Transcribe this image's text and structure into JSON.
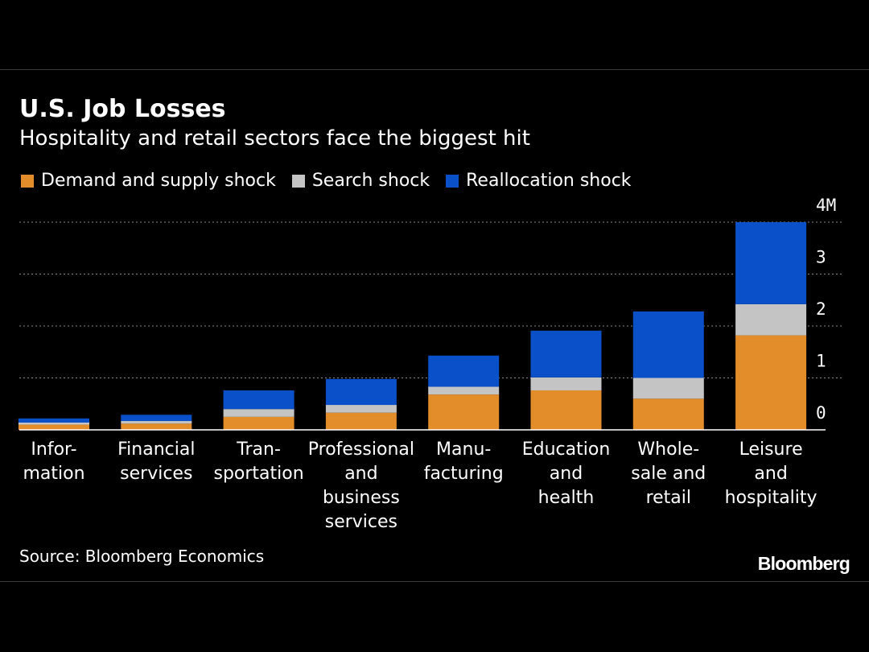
{
  "header": {
    "title": "U.S. Job Losses",
    "subtitle": "Hospitality and retail sectors face the biggest hit"
  },
  "legend": [
    {
      "label": "Demand and supply shock",
      "color": "#e38c2a"
    },
    {
      "label": "Search shock",
      "color": "#c4c4c4"
    },
    {
      "label": "Reallocation shock",
      "color": "#0a50c8"
    }
  ],
  "chart_data": {
    "type": "bar",
    "stacked": true,
    "categories": [
      [
        "Infor-",
        "mation"
      ],
      [
        "Financial",
        "services"
      ],
      [
        "Tran-",
        "sportation"
      ],
      [
        "Professional",
        "and",
        "business",
        "services"
      ],
      [
        "Manu-",
        "facturing"
      ],
      [
        "Education",
        "and",
        "health"
      ],
      [
        "Whole-",
        "sale and",
        "retail"
      ],
      [
        "Leisure",
        "and",
        "hospitality"
      ]
    ],
    "series": [
      {
        "name": "Demand and supply shock",
        "color": "#e38c2a",
        "values": [
          0.1,
          0.12,
          0.25,
          0.33,
          0.68,
          0.76,
          0.6,
          1.82
        ]
      },
      {
        "name": "Search shock",
        "color": "#c4c4c4",
        "values": [
          0.04,
          0.05,
          0.15,
          0.15,
          0.15,
          0.25,
          0.4,
          0.6
        ]
      },
      {
        "name": "Reallocation shock",
        "color": "#0a50c8",
        "values": [
          0.08,
          0.12,
          0.36,
          0.5,
          0.6,
          0.9,
          1.28,
          1.58
        ]
      }
    ],
    "y_ticks": [
      "0",
      "1",
      "2",
      "3",
      "4M"
    ],
    "ylim": [
      0,
      4
    ],
    "y_axis_position": "right",
    "grid": "dotted horizontal"
  },
  "footer": {
    "source": "Source: Bloomberg Economics",
    "brand": "Bloomberg"
  }
}
